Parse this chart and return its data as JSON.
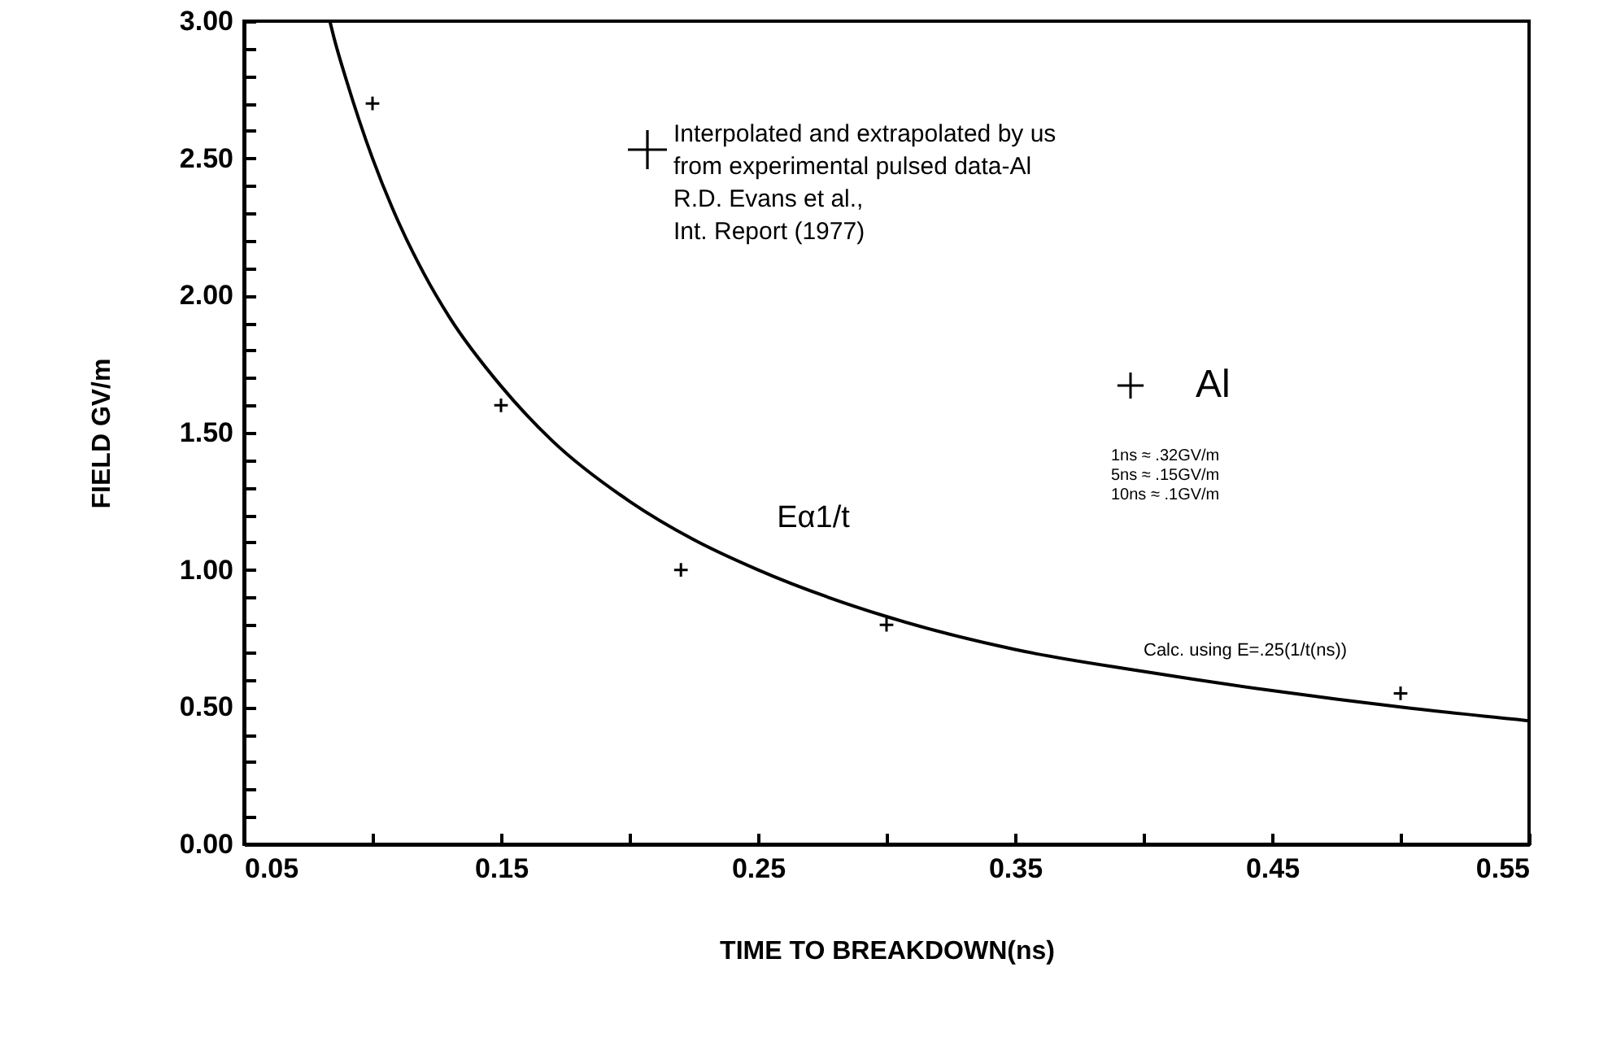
{
  "chart_data": {
    "type": "scatter",
    "xlabel": "TIME TO BREAKDOWN(ns)",
    "ylabel": "FIELD GV/m",
    "annotations": [
      "Interpolated and extrapolated by us\nfrom experimental pulsed data-Al\nR.D. Evans et al.,\nInt. Report (1977)",
      "1ns ≈ .32GV/m\n5ns ≈ .15GV/m\n10ns ≈ .1GV/m",
      "Eα1/t",
      "Calc. using E=.25(1/t(ns))"
    ],
    "series": [
      {
        "name": "Al",
        "marker": "cross",
        "color": "#000000",
        "x": [
          0.1,
          0.15,
          0.22,
          0.3,
          0.5
        ],
        "values": [
          2.7,
          1.6,
          1.0,
          0.8,
          0.55
        ]
      },
      {
        "type": "line",
        "color": "#000000",
        "x": [
          0.0834,
          0.085,
          0.09,
          0.1,
          0.11,
          0.12,
          0.13,
          0.15,
          0.17,
          0.2,
          0.225,
          0.25,
          0.3,
          0.35,
          0.4,
          0.45,
          0.5,
          0.55
        ],
        "values": [
          3.0,
          2.94,
          2.78,
          2.5,
          2.27,
          2.08,
          1.92,
          1.67,
          1.47,
          1.25,
          1.11,
          1.0,
          0.83,
          0.71,
          0.63,
          0.56,
          0.5,
          0.45
        ]
      }
    ],
    "line_style": "solid",
    "legend": "right",
    "grid": false,
    "xlim": [
      0.05,
      0.55
    ],
    "xticks": [
      {
        "value": 0.05,
        "label": "0.05"
      },
      {
        "value": 0.1,
        "label": null
      },
      {
        "value": 0.15,
        "label": "0.15"
      },
      {
        "value": 0.2,
        "label": null
      },
      {
        "value": 0.25,
        "label": "0.25"
      },
      {
        "value": 0.3,
        "label": null
      },
      {
        "value": 0.35,
        "label": "0.35"
      },
      {
        "value": 0.4,
        "label": null
      },
      {
        "value": 0.45,
        "label": "0.45"
      },
      {
        "value": 0.5,
        "label": null
      },
      {
        "value": 0.55,
        "label": "0.55"
      }
    ],
    "ylim": [
      0,
      3
    ],
    "yticks": [
      {
        "value": 0,
        "label": "0.00"
      },
      {
        "value": 0.1,
        "label": null
      },
      {
        "value": 0.2,
        "label": null
      },
      {
        "value": 0.3,
        "label": null
      },
      {
        "value": 0.4,
        "label": null
      },
      {
        "value": 0.5,
        "label": "0.50"
      },
      {
        "value": 0.6,
        "label": null
      },
      {
        "value": 0.7,
        "label": null
      },
      {
        "value": 0.8,
        "label": null
      },
      {
        "value": 0.9,
        "label": null
      },
      {
        "value": 1,
        "label": "1.00"
      },
      {
        "value": 1.1,
        "label": null
      },
      {
        "value": 1.2,
        "label": null
      },
      {
        "value": 1.3,
        "label": null
      },
      {
        "value": 1.4,
        "label": null
      },
      {
        "value": 1.5,
        "label": "1.50"
      },
      {
        "value": 1.6,
        "label": null
      },
      {
        "value": 1.7,
        "label": null
      },
      {
        "value": 1.8,
        "label": null
      },
      {
        "value": 1.9,
        "label": null
      },
      {
        "value": 2,
        "label": "2.00"
      },
      {
        "value": 2.1,
        "label": null
      },
      {
        "value": 2.2,
        "label": null
      },
      {
        "value": 2.3,
        "label": null
      },
      {
        "value": 2.4,
        "label": null
      },
      {
        "value": 2.5,
        "label": "2.50"
      },
      {
        "value": 2.6,
        "label": null
      },
      {
        "value": 2.7,
        "label": null
      },
      {
        "value": 2.8,
        "label": null
      },
      {
        "value": 2.9,
        "label": null
      },
      {
        "value": 3,
        "label": "3.00"
      }
    ]
  }
}
